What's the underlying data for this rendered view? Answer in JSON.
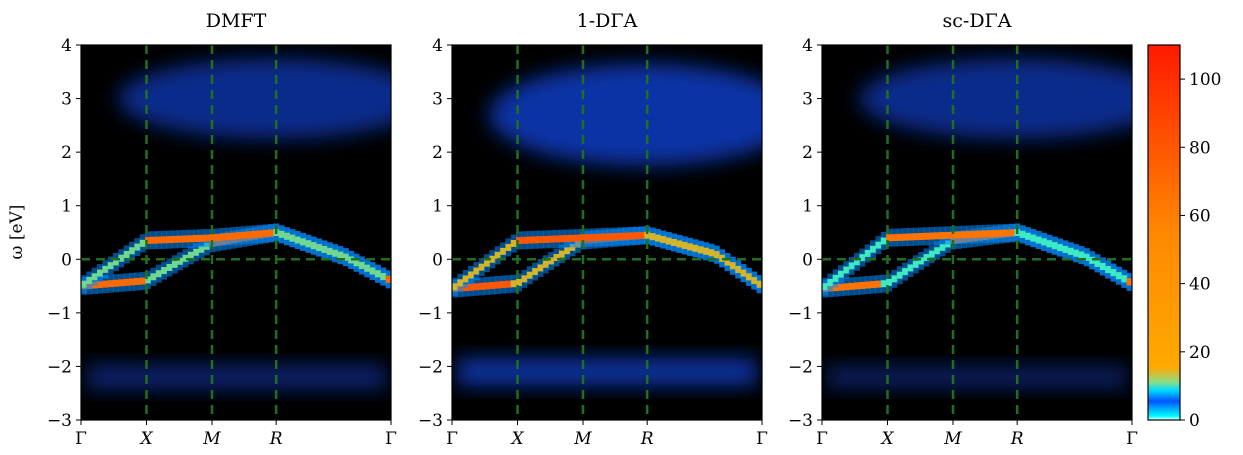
{
  "chart_data": {
    "type": "heatmap",
    "ylabel": "ω [eV]",
    "ylim": [
      -3,
      4
    ],
    "yticks": [
      {
        "value": 4,
        "label": "4"
      },
      {
        "value": 3,
        "label": "3"
      },
      {
        "value": 2,
        "label": "2"
      },
      {
        "value": 1,
        "label": "1"
      },
      {
        "value": 0,
        "label": "0"
      },
      {
        "value": -1,
        "label": "−1"
      },
      {
        "value": -2,
        "label": "−2"
      },
      {
        "value": -3,
        "label": "−3"
      }
    ],
    "k_path": [
      {
        "label": "Γ",
        "position": 0.0,
        "italic": false
      },
      {
        "label": "X",
        "position": 0.2113,
        "italic": true
      },
      {
        "label": "M",
        "position": 0.4226,
        "italic": true
      },
      {
        "label": "R",
        "position": 0.6296,
        "italic": true
      },
      {
        "label": "Γ",
        "position": 1.0,
        "italic": false
      }
    ],
    "reference_lines": {
      "horizontal": 0,
      "vertical_at": [
        "X",
        "M",
        "R"
      ],
      "style": "dashed",
      "color": "#1f6f1f"
    },
    "colorbar": {
      "range": [
        0,
        110
      ],
      "ticks": [
        {
          "value": 100,
          "label": "100"
        },
        {
          "value": 80,
          "label": "80"
        },
        {
          "value": 60,
          "label": "60"
        },
        {
          "value": 40,
          "label": "40"
        },
        {
          "value": 20,
          "label": "20"
        },
        {
          "value": 0,
          "label": "0"
        }
      ],
      "colormap": [
        "#000000",
        "#0000ff",
        "#00ffff",
        "#ffa500",
        "#ff0000"
      ]
    },
    "panels": [
      {
        "title": "DMFT",
        "band_lower": [
          [
            0.0,
            -0.5
          ],
          [
            0.2113,
            -0.4
          ],
          [
            0.3,
            -0.1
          ],
          [
            0.4226,
            0.3
          ],
          [
            0.6296,
            0.5
          ],
          [
            0.85,
            0.05
          ],
          [
            1.0,
            -0.4
          ]
        ],
        "band_upper": [
          [
            0.0,
            -0.5
          ],
          [
            0.2113,
            0.35
          ],
          [
            0.4226,
            0.4
          ],
          [
            0.6296,
            0.5
          ],
          [
            0.85,
            0.05
          ],
          [
            1.0,
            -0.4
          ]
        ],
        "upper_hubbard": {
          "center": 3.0,
          "width": 0.75,
          "intensity": 0.55
        },
        "lower_hubbard": {
          "center": -2.2,
          "width": 0.45,
          "intensity": 0.45
        },
        "band_peak": 55
      },
      {
        "title": "1-DΓA",
        "band_lower": [
          [
            0.0,
            -0.55
          ],
          [
            0.2113,
            -0.45
          ],
          [
            0.3,
            -0.1
          ],
          [
            0.4226,
            0.35
          ],
          [
            0.6296,
            0.45
          ],
          [
            0.85,
            0.1
          ],
          [
            1.0,
            -0.5
          ]
        ],
        "band_upper": [
          [
            0.0,
            -0.55
          ],
          [
            0.2113,
            0.35
          ],
          [
            0.4226,
            0.4
          ],
          [
            0.6296,
            0.45
          ],
          [
            0.85,
            0.1
          ],
          [
            1.0,
            -0.5
          ]
        ],
        "upper_hubbard": {
          "center": 2.7,
          "width": 0.95,
          "intensity": 0.65
        },
        "lower_hubbard": {
          "center": -2.1,
          "width": 0.5,
          "intensity": 0.65
        },
        "band_peak": 65
      },
      {
        "title": "sc-DΓA",
        "band_lower": [
          [
            0.0,
            -0.55
          ],
          [
            0.2113,
            -0.45
          ],
          [
            0.3,
            -0.1
          ],
          [
            0.4226,
            0.35
          ],
          [
            0.6296,
            0.5
          ],
          [
            0.85,
            0.05
          ],
          [
            1.0,
            -0.45
          ]
        ],
        "band_upper": [
          [
            0.0,
            -0.55
          ],
          [
            0.2113,
            0.4
          ],
          [
            0.4226,
            0.45
          ],
          [
            0.6296,
            0.5
          ],
          [
            0.85,
            0.05
          ],
          [
            1.0,
            -0.45
          ]
        ],
        "upper_hubbard": {
          "center": 3.0,
          "width": 0.75,
          "intensity": 0.55
        },
        "lower_hubbard": {
          "center": -2.2,
          "width": 0.4,
          "intensity": 0.4
        },
        "band_peak": 50
      }
    ]
  }
}
